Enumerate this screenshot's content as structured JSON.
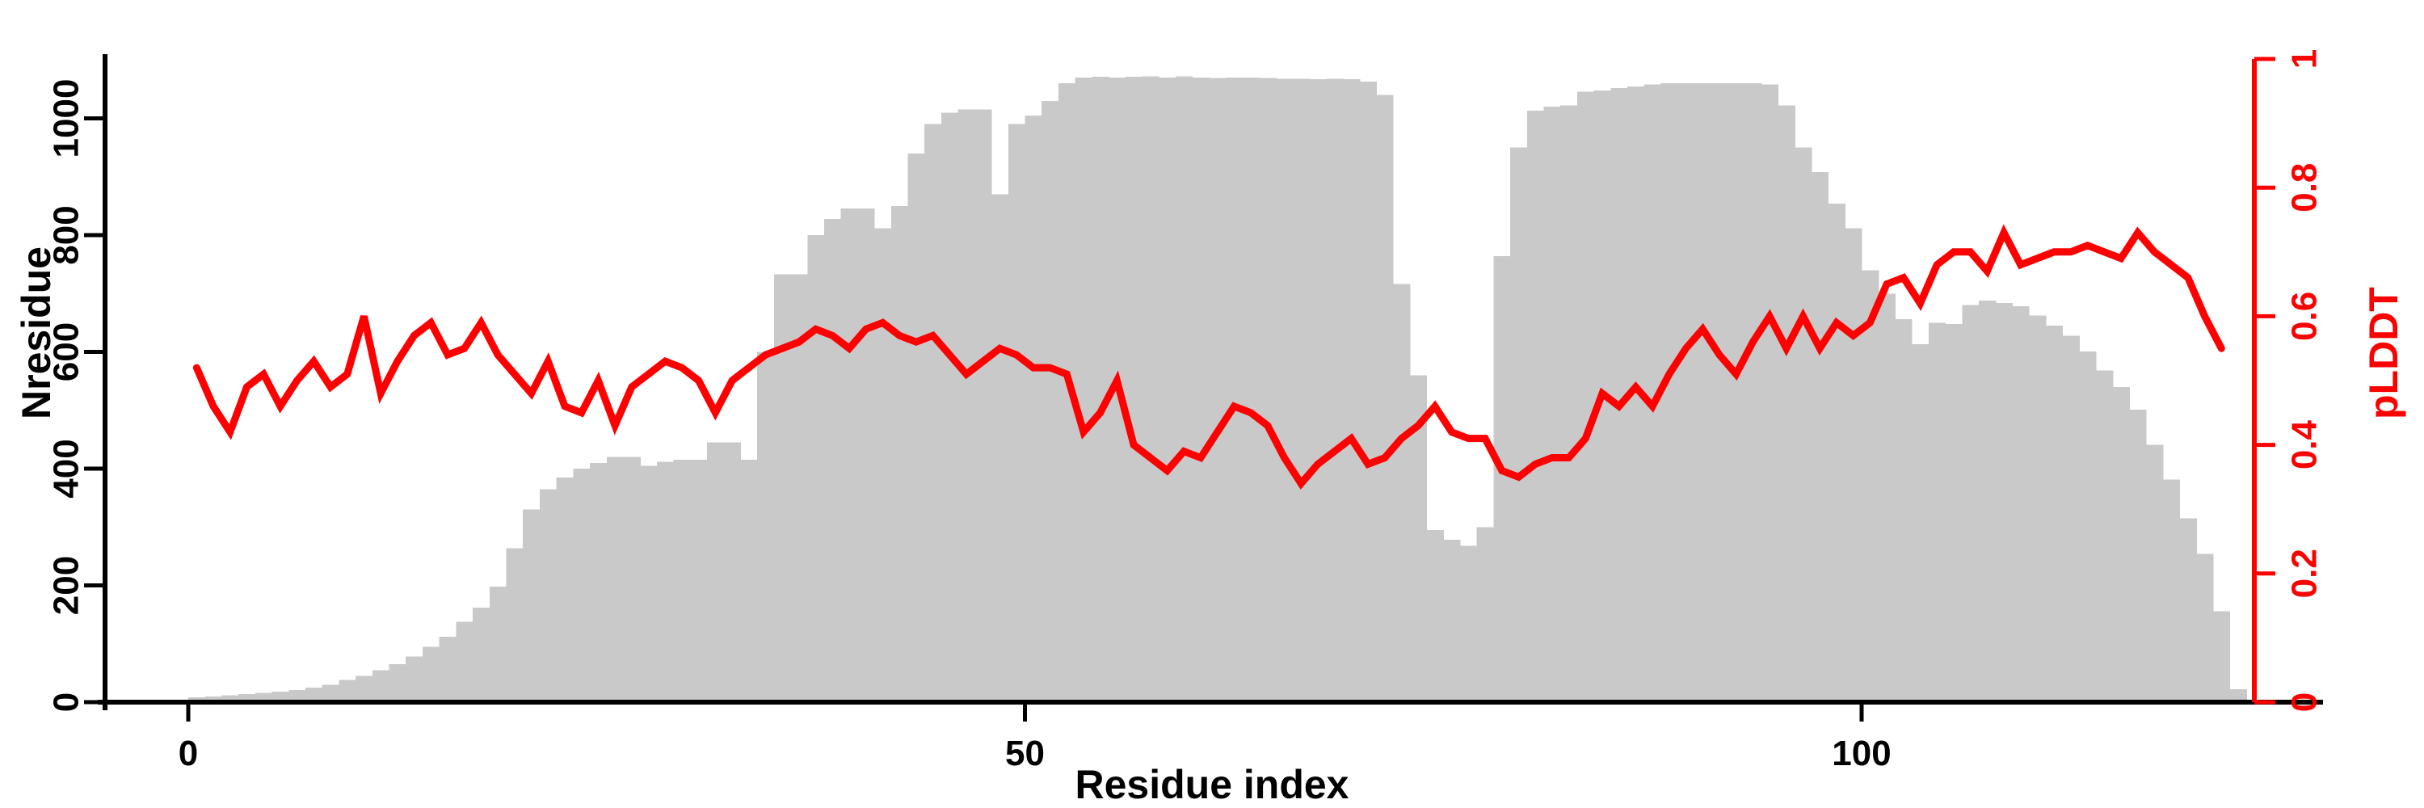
{
  "figure": {
    "background": "#ffffff"
  },
  "chart_data": {
    "type": "bar",
    "subtype": "histogram-with-line-overlay",
    "title": "",
    "xlabel": "Residue index",
    "ylabel_left": "Nresidue",
    "ylabel_right": "pLDDT",
    "legend": "none",
    "grid": false,
    "x_tick_labels": [
      "0",
      "50",
      "100"
    ],
    "x_tick_values": [
      0,
      50,
      100
    ],
    "y_left_tick_labels": [
      "0",
      "200",
      "400",
      "600",
      "800",
      "1000"
    ],
    "y_left_tick_values": [
      0,
      200,
      400,
      600,
      800,
      1000
    ],
    "y_right_tick_labels": [
      "0",
      "0.2",
      "0.4",
      "0.6",
      "0.8",
      "1"
    ],
    "y_right_tick_values": [
      0,
      0.2,
      0.4,
      0.6,
      0.8,
      1
    ],
    "xlim": [
      -5,
      128
    ],
    "ylim_left": [
      0,
      1105
    ],
    "ylim_right": [
      0,
      1
    ],
    "colors": {
      "bar_fill": "#c9c9c9",
      "line": "#fe0000",
      "right_axis": "#fe0000",
      "left_axis": "#000000",
      "text": "#000000"
    },
    "series": [
      {
        "name": "Nresidue",
        "type": "bar",
        "axis": "left",
        "x_start_index": 1,
        "values": [
          8,
          10,
          12,
          14,
          16,
          18,
          21,
          25,
          30,
          38,
          45,
          55,
          65,
          78,
          95,
          112,
          138,
          162,
          198,
          264,
          330,
          365,
          385,
          400,
          410,
          420,
          420,
          405,
          412,
          415,
          415,
          445,
          445,
          415,
          600,
          733,
          733,
          800,
          828,
          846,
          846,
          812,
          850,
          940,
          990,
          1010,
          1015,
          1015,
          870,
          990,
          1005,
          1030,
          1060,
          1070,
          1071,
          1070,
          1071,
          1072,
          1070,
          1072,
          1070,
          1069,
          1070,
          1070,
          1069,
          1068,
          1068,
          1067,
          1068,
          1067,
          1063,
          1040,
          716,
          560,
          295,
          278,
          268,
          300,
          764,
          950,
          1013,
          1020,
          1022,
          1046,
          1048,
          1052,
          1055,
          1058,
          1060,
          1060,
          1060,
          1060,
          1060,
          1060,
          1058,
          1022,
          950,
          908,
          854,
          812,
          740,
          700,
          656,
          613,
          650,
          648,
          680,
          688,
          684,
          678,
          662,
          645,
          628,
          601,
          568,
          540,
          501,
          441,
          381,
          315,
          254,
          156,
          22
        ]
      },
      {
        "name": "pLDDT",
        "type": "line",
        "axis": "right",
        "x_start_index": 1,
        "values": [
          0.52,
          0.46,
          0.42,
          0.49,
          0.51,
          0.46,
          0.5,
          0.53,
          0.49,
          0.51,
          0.6,
          0.48,
          0.53,
          0.57,
          0.59,
          0.54,
          0.55,
          0.59,
          0.54,
          0.51,
          0.48,
          0.53,
          0.46,
          0.45,
          0.5,
          0.43,
          0.49,
          0.51,
          0.53,
          0.52,
          0.5,
          0.45,
          0.5,
          0.52,
          0.54,
          0.55,
          0.56,
          0.58,
          0.57,
          0.55,
          0.58,
          0.59,
          0.57,
          0.56,
          0.57,
          0.54,
          0.51,
          0.53,
          0.55,
          0.54,
          0.52,
          0.52,
          0.51,
          0.42,
          0.45,
          0.5,
          0.4,
          0.38,
          0.36,
          0.39,
          0.38,
          0.42,
          0.46,
          0.45,
          0.43,
          0.38,
          0.34,
          0.37,
          0.39,
          0.41,
          0.37,
          0.38,
          0.41,
          0.43,
          0.46,
          0.42,
          0.41,
          0.41,
          0.36,
          0.35,
          0.37,
          0.38,
          0.38,
          0.41,
          0.48,
          0.46,
          0.49,
          0.46,
          0.51,
          0.55,
          0.58,
          0.54,
          0.51,
          0.56,
          0.6,
          0.55,
          0.6,
          0.55,
          0.59,
          0.57,
          0.59,
          0.65,
          0.66,
          0.62,
          0.68,
          0.7,
          0.7,
          0.67,
          0.73,
          0.68,
          0.69,
          0.7,
          0.7,
          0.71,
          0.7,
          0.69,
          0.73,
          0.7,
          0.68,
          0.66,
          0.6,
          0.55
        ]
      }
    ]
  }
}
